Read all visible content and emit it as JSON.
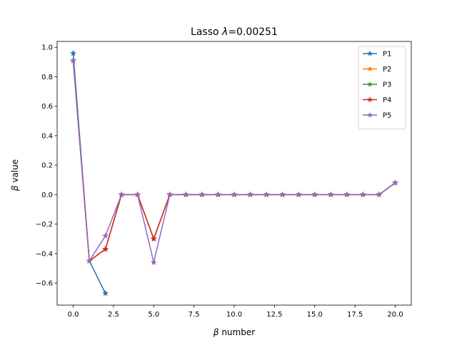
{
  "chart_data": {
    "type": "line",
    "title_prefix": "Lasso ",
    "title_symbol": "λ",
    "title_suffix": "=0.00251",
    "xlabel_symbol": "β",
    "xlabel_text": " number",
    "ylabel_symbol": "β",
    "ylabel_text": " value",
    "xlim": [
      -1.0,
      21.0
    ],
    "ylim": [
      -0.75,
      1.04
    ],
    "xticks": [
      0.0,
      2.5,
      5.0,
      7.5,
      10.0,
      12.5,
      15.0,
      17.5,
      20.0
    ],
    "xtick_labels": [
      "0.0",
      "2.5",
      "5.0",
      "7.5",
      "10.0",
      "12.5",
      "15.0",
      "17.5",
      "20.0"
    ],
    "yticks": [
      -0.6,
      -0.4,
      -0.2,
      0.0,
      0.2,
      0.4,
      0.6,
      0.8,
      1.0
    ],
    "ytick_labels": [
      "−0.6",
      "−0.4",
      "−0.2",
      "0.0",
      "0.2",
      "0.4",
      "0.6",
      "0.8",
      "1.0"
    ],
    "grid": false,
    "legend_position": "top-right",
    "marker": "star",
    "series": [
      {
        "name": "P1",
        "color": "#1f77b4",
        "x": [
          0,
          1,
          2
        ],
        "values": [
          0.96,
          -0.45,
          -0.67
        ]
      },
      {
        "name": "P2",
        "color": "#ff7f0e",
        "x": [
          0,
          1,
          2,
          3,
          4,
          5,
          6,
          7,
          8,
          9,
          10,
          11,
          12,
          13,
          14,
          15,
          16,
          17,
          18,
          19,
          20
        ],
        "values": [
          0.91,
          -0.45,
          -0.37,
          0.0,
          0.0,
          -0.3,
          0.0,
          0.0,
          0.0,
          0.0,
          0.0,
          0.0,
          0.0,
          0.0,
          0.0,
          0.0,
          0.0,
          0.0,
          0.0,
          0.0,
          0.08
        ]
      },
      {
        "name": "P3",
        "color": "#2ca02c",
        "x": [
          0,
          1,
          2,
          3,
          4,
          5,
          6,
          7,
          8,
          9,
          10,
          11,
          12,
          13,
          14,
          15,
          16,
          17,
          18,
          19,
          20
        ],
        "values": [
          0.91,
          -0.45,
          -0.37,
          0.0,
          0.0,
          -0.3,
          0.0,
          0.0,
          0.0,
          0.0,
          0.0,
          0.0,
          0.0,
          0.0,
          0.0,
          0.0,
          0.0,
          0.0,
          0.0,
          0.0,
          0.08
        ]
      },
      {
        "name": "P4",
        "color": "#d62728",
        "x": [
          0,
          1,
          2,
          3,
          4,
          5,
          6,
          7,
          8,
          9,
          10,
          11,
          12,
          13,
          14,
          15,
          16,
          17,
          18,
          19,
          20
        ],
        "values": [
          0.91,
          -0.45,
          -0.37,
          0.0,
          0.0,
          -0.3,
          0.0,
          0.0,
          0.0,
          0.0,
          0.0,
          0.0,
          0.0,
          0.0,
          0.0,
          0.0,
          0.0,
          0.0,
          0.0,
          0.0,
          0.08
        ]
      },
      {
        "name": "P5",
        "color": "#9467bd",
        "x": [
          0,
          1,
          2,
          3,
          4,
          5,
          6,
          7,
          8,
          9,
          10,
          11,
          12,
          13,
          14,
          15,
          16,
          17,
          18,
          19,
          20
        ],
        "values": [
          0.91,
          -0.45,
          -0.28,
          0.0,
          0.0,
          -0.46,
          0.0,
          0.0,
          0.0,
          0.0,
          0.0,
          0.0,
          0.0,
          0.0,
          0.0,
          0.0,
          0.0,
          0.0,
          0.0,
          0.0,
          0.08
        ]
      }
    ]
  }
}
